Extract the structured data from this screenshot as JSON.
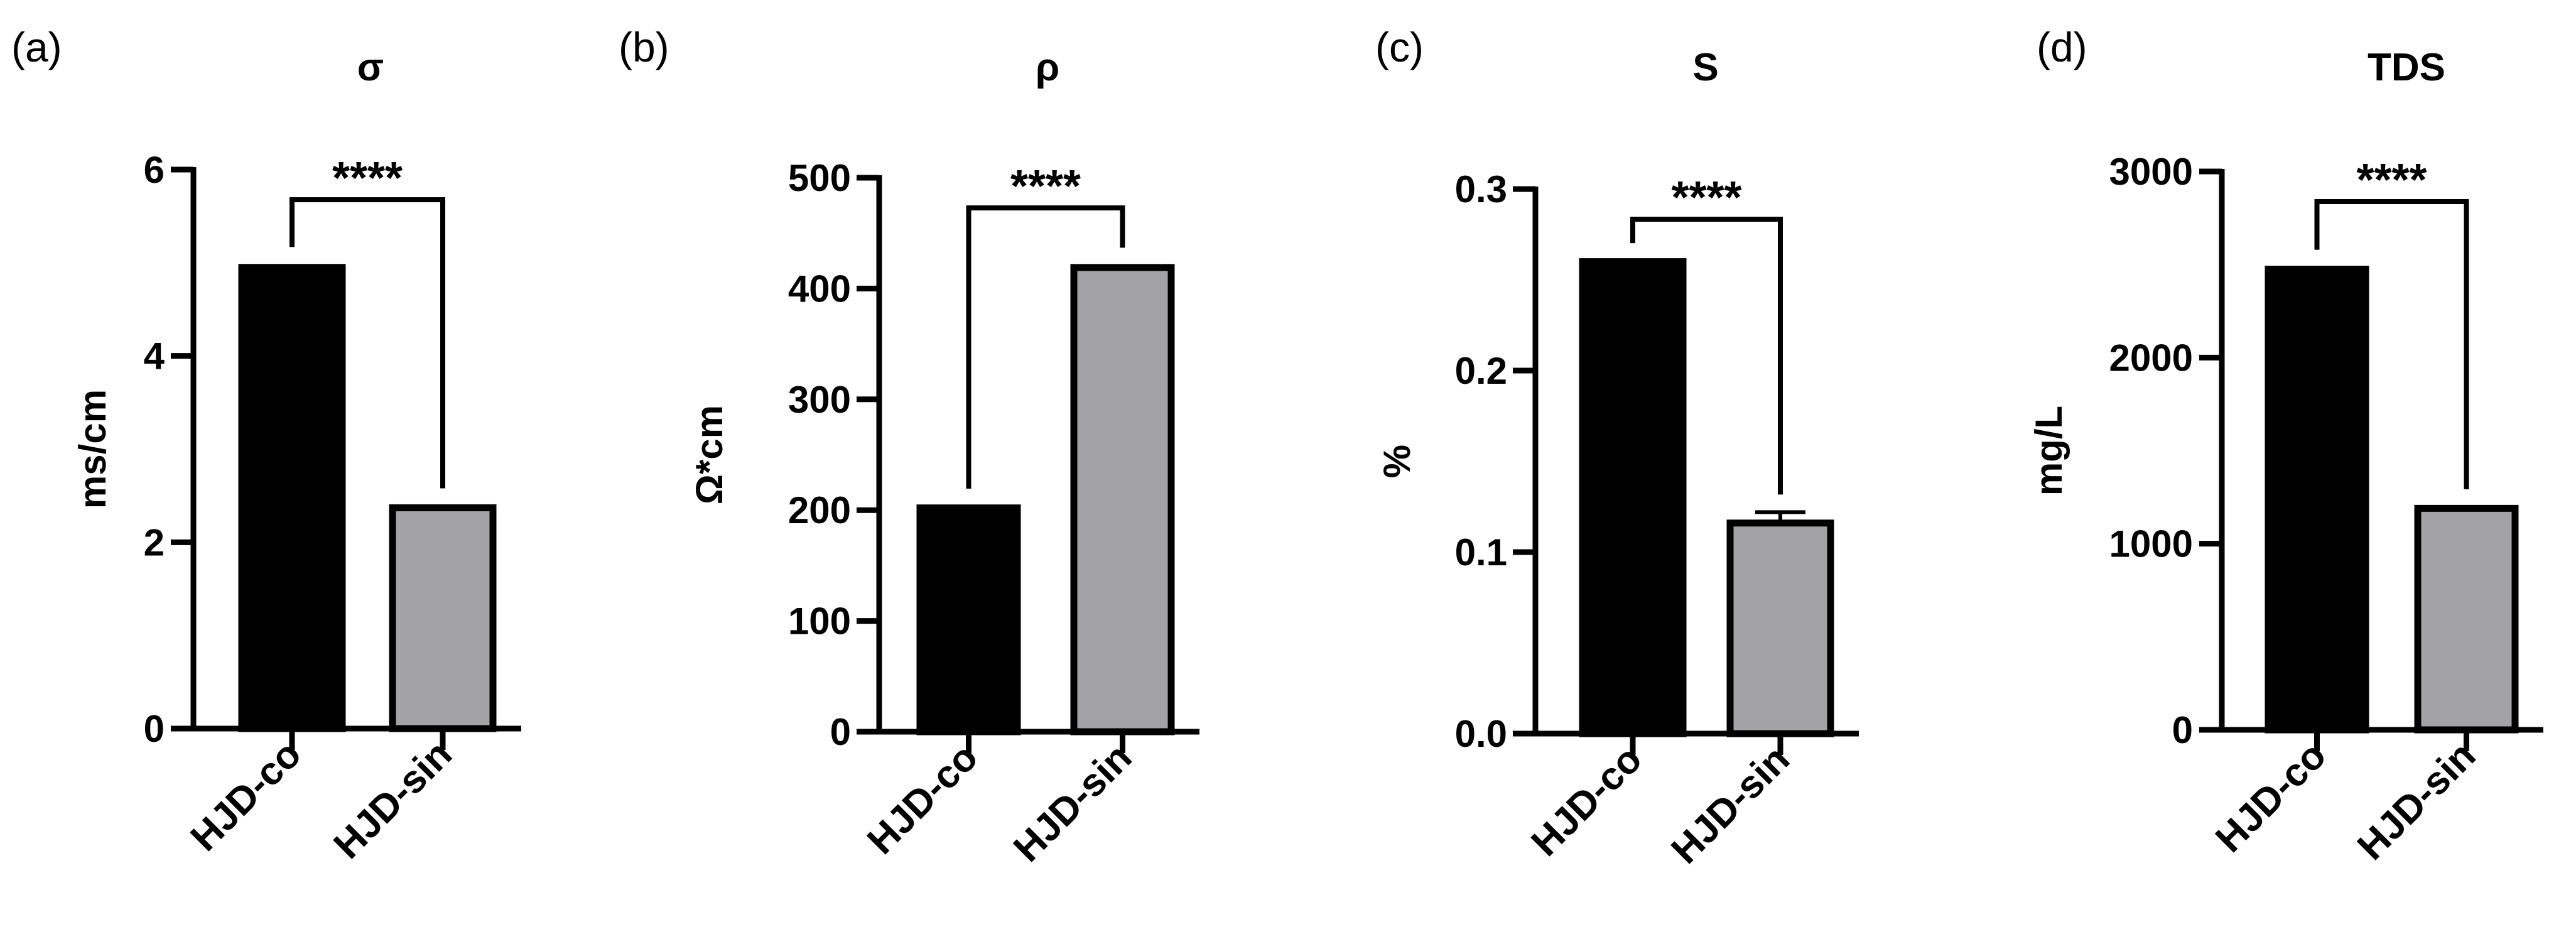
{
  "chart_data": [
    {
      "type": "bar",
      "panel": "(a)",
      "title": "σ",
      "ylabel": "ms/cm",
      "xlabel": "",
      "categories": [
        "HJD-co",
        "HJD-sin"
      ],
      "values": [
        4.95,
        2.37
      ],
      "errors": [
        0.03,
        0.02
      ],
      "colors": [
        "#000000",
        "#a3a2a7"
      ],
      "ylim": [
        0,
        6
      ],
      "yticks": [
        0,
        2,
        4,
        6
      ],
      "ytick_labels": [
        "0",
        "2",
        "4",
        "6"
      ],
      "significance": "****"
    },
    {
      "type": "bar",
      "panel": "(b)",
      "title": "ρ",
      "ylabel": "Ω*cm",
      "xlabel": "",
      "categories": [
        "HJD-co",
        "HJD-sin"
      ],
      "values": [
        202,
        419
      ],
      "errors": [
        1.5,
        2
      ],
      "colors": [
        "#000000",
        "#a3a2a7"
      ],
      "ylim": [
        0,
        500
      ],
      "yticks": [
        0,
        100,
        200,
        300,
        400,
        500
      ],
      "ytick_labels": [
        "0",
        "100",
        "200",
        "300",
        "400",
        "500"
      ],
      "significance": "****"
    },
    {
      "type": "bar",
      "panel": "(c)",
      "title": "S",
      "ylabel": "%",
      "xlabel": "",
      "categories": [
        "HJD-co",
        "HJD-sin"
      ],
      "values": [
        0.26,
        0.116
      ],
      "errors": [
        0.0005,
        0.006
      ],
      "colors": [
        "#000000",
        "#a3a2a7"
      ],
      "ylim": [
        0,
        0.3
      ],
      "yticks": [
        0,
        0.1,
        0.2,
        0.3
      ],
      "ytick_labels": [
        "0.0",
        "0.1",
        "0.2",
        "0.3"
      ],
      "significance": "****"
    },
    {
      "type": "bar",
      "panel": "(d)",
      "title": "TDS",
      "ylabel": "mg/L",
      "xlabel": "",
      "categories": [
        "HJD-co",
        "HJD-sin"
      ],
      "values": [
        2475,
        1190
      ],
      "errors": [
        10,
        8
      ],
      "colors": [
        "#000000",
        "#a3a2a7"
      ],
      "ylim": [
        0,
        3000
      ],
      "yticks": [
        0,
        1000,
        2000,
        3000
      ],
      "ytick_labels": [
        "0",
        "1000",
        "2000",
        "3000"
      ],
      "significance": "****"
    }
  ]
}
